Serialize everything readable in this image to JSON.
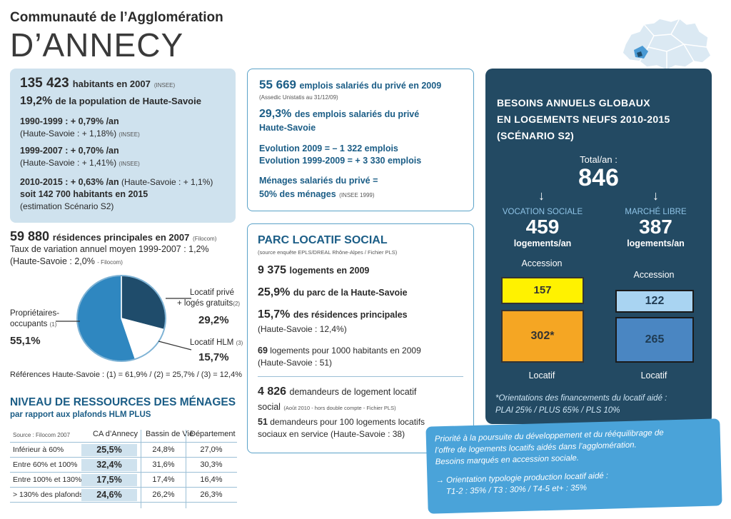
{
  "header": {
    "line1": "Communauté de l’Agglomération",
    "line2": "D’ANNECY"
  },
  "population": {
    "habitants_num": "135 423",
    "habitants_txt": "habitants en 2007",
    "habitants_src": "(INSEE)",
    "pct": "19,2%",
    "pct_txt": "de la population de Haute-Savoie",
    "r1_main": "1990-1999 : + 0,79% /an",
    "r1_sub": "(Haute-Savoie : + 1,18%)",
    "r1_src": "(INSEE)",
    "r2_main": "1999-2007 : + 0,70% /an",
    "r2_sub": "(Haute-Savoie : + 1,41%)",
    "r2_src": "(INSEE)",
    "r3_main": "2010-2015 : + 0,63% /an",
    "r3_side": "(Haute-Savoie : + 1,1%)",
    "r3_line2": "soit 142 700 habitants en 2015",
    "r3_line3": "(estimation Scénario S2)"
  },
  "residences": {
    "num": "59 880",
    "txt": "résidences principales en 2007",
    "src": "(Filocom)",
    "line2": "Taux de variation annuel moyen 1999-2007 : 1,2%",
    "line3": "(Haute-Savoie : 2,0%",
    "line3_src": "- Filocom)"
  },
  "pie": {
    "owners_label": "Propriétaires-",
    "owners_label2": "occupants",
    "owners_note": "(1)",
    "owners_value": "55,1%",
    "prive_label": "Locatif privé",
    "prive_label2": "+ logés gratuits",
    "prive_note": "(2)",
    "prive_value": "29,2%",
    "hlm_label": "Locatif HLM",
    "hlm_note": "(3)",
    "hlm_value": "15,7%",
    "references": "Références Haute-Savoie : (1) = 61,9% / (2) = 25,7% / (3) = 12,4%",
    "colors": {
      "owners": "#2f87c0",
      "prive": "#1f4c6b",
      "hlm": "#ffffff"
    }
  },
  "chart_data": {
    "type": "pie",
    "categories": [
      "Propriétaires-occupants",
      "Locatif privé + logés gratuits",
      "Locatif HLM"
    ],
    "values": [
      55.1,
      29.2,
      15.7
    ]
  },
  "ressources": {
    "title": "NIVEAU DE RESSOURCES DES MÉNAGES",
    "subtitle": "par rapport aux plafonds HLM PLUS",
    "source": "Source : Filocom 2007",
    "columns": [
      "CA d’Annecy",
      "Bassin de Vie",
      "Département"
    ],
    "rows": [
      {
        "label": "Inférieur à 60%",
        "ca": "25,5%",
        "bassin": "24,8%",
        "dep": "27,0%"
      },
      {
        "label": "Entre 60% et 100%",
        "ca": "32,4%",
        "bassin": "31,6%",
        "dep": "30,3%"
      },
      {
        "label": "Entre 100% et 130%",
        "ca": "17,5%",
        "bassin": "17,4%",
        "dep": "16,4%"
      },
      {
        "label": "> 130% des plafonds",
        "ca": "24,6%",
        "bassin": "26,2%",
        "dep": "26,3%"
      }
    ]
  },
  "emplois": {
    "num": "55 669",
    "txt": "emplois salariés du privé en 2009",
    "src": "(Assedic Unistatis au 31/12/09)",
    "pct": "29,3%",
    "pct_txt": "des emplois salariés du privé",
    "pct_line2": "Haute-Savoie",
    "evo1": "Evolution 2009 = – 1 322 emplois",
    "evo2": "Evolution 1999-2009 = + 3 330 emplois",
    "men1": "Ménages salariés du privé =",
    "men2": "50% des ménages",
    "men_src": "(INSEE 1999)"
  },
  "parc": {
    "title": "PARC LOCATIF SOCIAL",
    "src": "(source enquête EPLS/DREAL Rhône-Alpes / Fichier PLS)",
    "n1": "9 375",
    "n1_txt": "logements en 2009",
    "n2": "25,9%",
    "n2_txt": "du parc de la Haute-Savoie",
    "n3": "15,7%",
    "n3_txt": "des résidences principales",
    "n3_sub": "(Haute-Savoie : 12,4%)",
    "n4": "69",
    "n4_txt": "logements pour 1000 habitants en 2009",
    "n4_sub": "(Haute-Savoie : 51)",
    "n5": "4 826",
    "n5_txt": "demandeurs de logement locatif",
    "n5_line2": "social",
    "n5_src": "(Août 2010 - hors double compte - Fichier PLS)",
    "n6": "51",
    "n6_txt": "demandeurs pour 100 logements locatifs",
    "n6_line2": "sociaux en service (Haute-Savoie : 38)"
  },
  "besoins": {
    "title1": "BESOINS ANNUELS GLOBAUX",
    "title2": "EN LOGEMENTS NEUFS 2010-2015",
    "title3": "(SCÉNARIO S2)",
    "total_label": "Total/an :",
    "total_value": "846",
    "arrow": "↓",
    "sociale_label": "VOCATION SOCIALE",
    "sociale_value": "459",
    "sociale_unit": "logements/an",
    "libre_label": "MARCHÉ LIBRE",
    "libre_value": "387",
    "libre_unit": "logements/an",
    "accession": "Accession",
    "locatif": "Locatif",
    "soc_accession": "157",
    "soc_locatif": "302*",
    "lib_accession": "122",
    "lib_locatif": "265",
    "note1": "*Orientations des financements du locatif aidé :",
    "note2": "PLAI 25% / PLUS 65% / PLS 10%",
    "colors": {
      "soc_accession": "#fff200",
      "soc_locatif": "#f5a623",
      "lib_accession": "#a9d4f2",
      "lib_locatif": "#4a86c2"
    }
  },
  "priorite": {
    "line1": "Priorité à la poursuite du développement et du rééquilibrage de",
    "line2": "l’offre de logements locatifs aidés dans l’agglomération.",
    "line3": "Besoins marqués en accession sociale.",
    "line4": "→ Orientation  typologie production locatif aidé :",
    "line5": "T1-2 : 35% / T3 : 30% / T4-5 et+ : 35%"
  }
}
